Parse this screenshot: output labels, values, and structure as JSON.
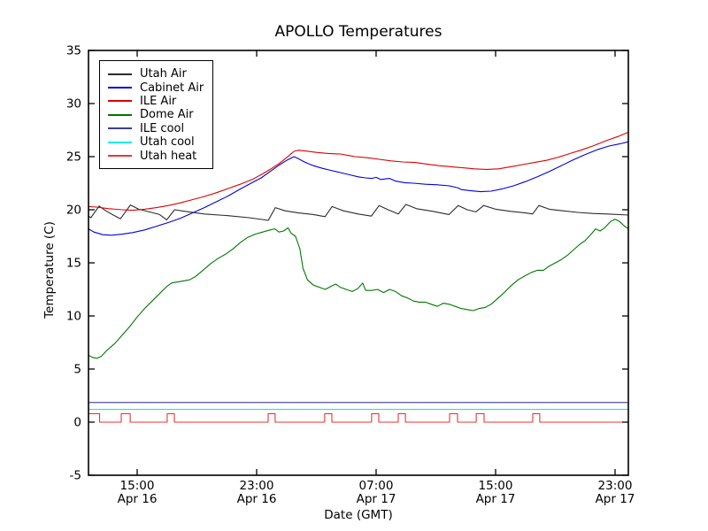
{
  "title": "APOLLO Temperatures",
  "xlabel": "Date (GMT)",
  "ylabel": "Temperature (C)",
  "colors": {
    "background": "#ffffff",
    "axis": "#000000",
    "utah_air": "#2b2b2b",
    "cabinet_air": "#0000dd",
    "ile_air": "#dd0000",
    "dome_air": "#007700",
    "ile_cool": "#3c3c8e",
    "utah_cool": "#00eeee",
    "utah_heat": "#ee3333"
  },
  "chart_data": {
    "type": "line",
    "title": "APOLLO Temperatures",
    "xlabel": "Date (GMT)",
    "ylabel": "Temperature (C)",
    "grid": false,
    "legend_position": "upper left",
    "x_unit": "hours since Apr 16 00:00 GMT",
    "x_range": [
      11.74,
      47.89
    ],
    "y_range": [
      -5,
      35
    ],
    "y_ticks": [
      -5,
      0,
      5,
      10,
      15,
      20,
      25,
      30,
      35
    ],
    "x_ticks": [
      {
        "value": 15,
        "line1": "15:00",
        "line2": "Apr 16"
      },
      {
        "value": 23,
        "line1": "23:00",
        "line2": "Apr 16"
      },
      {
        "value": 31,
        "line1": "07:00",
        "line2": "Apr 17"
      },
      {
        "value": 39,
        "line1": "15:00",
        "line2": "Apr 17"
      },
      {
        "value": 47,
        "line1": "23:00",
        "line2": "Apr 17"
      }
    ],
    "series": [
      {
        "name": "Utah Air",
        "color": "#2b2b2b",
        "points": [
          [
            11.74,
            19.4
          ],
          [
            11.9,
            19.25
          ],
          [
            12.45,
            20.35
          ],
          [
            12.9,
            19.9
          ],
          [
            13.4,
            19.5
          ],
          [
            13.88,
            19.15
          ],
          [
            14.55,
            20.45
          ],
          [
            15.1,
            20.05
          ],
          [
            15.8,
            19.8
          ],
          [
            16.5,
            19.55
          ],
          [
            16.98,
            19.05
          ],
          [
            17.5,
            20.0
          ],
          [
            18.2,
            19.85
          ],
          [
            19.5,
            19.6
          ],
          [
            21.0,
            19.45
          ],
          [
            22.5,
            19.25
          ],
          [
            23.78,
            19.0
          ],
          [
            24.25,
            20.2
          ],
          [
            24.9,
            19.9
          ],
          [
            25.8,
            19.7
          ],
          [
            26.8,
            19.55
          ],
          [
            27.58,
            19.35
          ],
          [
            28.05,
            20.3
          ],
          [
            28.8,
            19.9
          ],
          [
            29.8,
            19.6
          ],
          [
            30.68,
            19.4
          ],
          [
            31.2,
            20.4
          ],
          [
            31.8,
            20.0
          ],
          [
            32.48,
            19.6
          ],
          [
            33.0,
            20.5
          ],
          [
            33.7,
            20.1
          ],
          [
            34.8,
            19.85
          ],
          [
            35.88,
            19.55
          ],
          [
            36.5,
            20.4
          ],
          [
            37.1,
            20.0
          ],
          [
            37.68,
            19.8
          ],
          [
            38.2,
            20.4
          ],
          [
            39.0,
            20.05
          ],
          [
            40.0,
            19.85
          ],
          [
            41.0,
            19.7
          ],
          [
            41.48,
            19.6
          ],
          [
            41.9,
            20.4
          ],
          [
            42.6,
            20.05
          ],
          [
            43.5,
            19.9
          ],
          [
            44.5,
            19.75
          ],
          [
            45.5,
            19.65
          ],
          [
            46.5,
            19.6
          ],
          [
            47.89,
            19.5
          ]
        ]
      },
      {
        "name": "Cabinet Air",
        "color": "#0000dd",
        "points": [
          [
            11.74,
            18.2
          ],
          [
            12.1,
            17.9
          ],
          [
            12.7,
            17.65
          ],
          [
            13.3,
            17.6
          ],
          [
            14.0,
            17.7
          ],
          [
            14.7,
            17.85
          ],
          [
            15.5,
            18.1
          ],
          [
            16.3,
            18.45
          ],
          [
            17.1,
            18.8
          ],
          [
            17.9,
            19.2
          ],
          [
            18.7,
            19.7
          ],
          [
            19.5,
            20.2
          ],
          [
            20.3,
            20.75
          ],
          [
            21.1,
            21.3
          ],
          [
            21.9,
            21.95
          ],
          [
            22.7,
            22.55
          ],
          [
            23.3,
            23.0
          ],
          [
            23.9,
            23.6
          ],
          [
            24.5,
            24.2
          ],
          [
            25.0,
            24.65
          ],
          [
            25.5,
            25.0
          ],
          [
            25.8,
            24.8
          ],
          [
            26.2,
            24.5
          ],
          [
            26.8,
            24.15
          ],
          [
            27.4,
            23.9
          ],
          [
            28.0,
            23.7
          ],
          [
            28.6,
            23.5
          ],
          [
            29.2,
            23.3
          ],
          [
            29.8,
            23.1
          ],
          [
            30.3,
            23.0
          ],
          [
            30.7,
            22.95
          ],
          [
            31.0,
            23.05
          ],
          [
            31.3,
            22.85
          ],
          [
            31.9,
            22.95
          ],
          [
            32.3,
            22.7
          ],
          [
            32.9,
            22.55
          ],
          [
            33.5,
            22.5
          ],
          [
            34.3,
            22.4
          ],
          [
            35.1,
            22.35
          ],
          [
            35.9,
            22.25
          ],
          [
            36.5,
            22.05
          ],
          [
            36.7,
            21.9
          ],
          [
            37.3,
            21.8
          ],
          [
            38.0,
            21.7
          ],
          [
            38.7,
            21.75
          ],
          [
            39.4,
            21.95
          ],
          [
            40.2,
            22.25
          ],
          [
            41.0,
            22.65
          ],
          [
            41.8,
            23.1
          ],
          [
            42.6,
            23.6
          ],
          [
            43.4,
            24.15
          ],
          [
            44.2,
            24.7
          ],
          [
            45.0,
            25.2
          ],
          [
            45.8,
            25.65
          ],
          [
            46.6,
            26.0
          ],
          [
            47.3,
            26.2
          ],
          [
            47.89,
            26.4
          ]
        ]
      },
      {
        "name": "ILE Air",
        "color": "#dd0000",
        "points": [
          [
            11.74,
            20.3
          ],
          [
            12.3,
            20.25
          ],
          [
            13.1,
            20.1
          ],
          [
            14.0,
            20.0
          ],
          [
            14.7,
            19.95
          ],
          [
            15.5,
            20.05
          ],
          [
            16.3,
            20.2
          ],
          [
            17.1,
            20.4
          ],
          [
            17.9,
            20.65
          ],
          [
            18.7,
            20.95
          ],
          [
            19.5,
            21.25
          ],
          [
            20.3,
            21.6
          ],
          [
            21.1,
            22.0
          ],
          [
            21.9,
            22.4
          ],
          [
            22.7,
            22.85
          ],
          [
            23.3,
            23.3
          ],
          [
            23.9,
            23.8
          ],
          [
            24.5,
            24.35
          ],
          [
            25.0,
            24.9
          ],
          [
            25.5,
            25.5
          ],
          [
            25.8,
            25.6
          ],
          [
            26.2,
            25.55
          ],
          [
            27.0,
            25.4
          ],
          [
            27.8,
            25.3
          ],
          [
            28.6,
            25.25
          ],
          [
            29.2,
            25.1
          ],
          [
            29.6,
            25.0
          ],
          [
            30.4,
            24.9
          ],
          [
            31.2,
            24.75
          ],
          [
            32.0,
            24.6
          ],
          [
            32.8,
            24.5
          ],
          [
            33.6,
            24.45
          ],
          [
            34.4,
            24.3
          ],
          [
            35.2,
            24.15
          ],
          [
            36.0,
            24.05
          ],
          [
            36.8,
            23.95
          ],
          [
            37.6,
            23.85
          ],
          [
            38.4,
            23.8
          ],
          [
            39.2,
            23.85
          ],
          [
            40.0,
            24.05
          ],
          [
            40.8,
            24.25
          ],
          [
            41.6,
            24.45
          ],
          [
            42.4,
            24.65
          ],
          [
            43.2,
            24.95
          ],
          [
            44.0,
            25.3
          ],
          [
            44.8,
            25.65
          ],
          [
            45.6,
            26.05
          ],
          [
            46.4,
            26.5
          ],
          [
            47.2,
            26.9
          ],
          [
            47.89,
            27.3
          ]
        ]
      },
      {
        "name": "Dome Air",
        "color": "#007700",
        "points": [
          [
            11.74,
            6.3
          ],
          [
            12.0,
            6.1
          ],
          [
            12.3,
            6.0
          ],
          [
            12.6,
            6.2
          ],
          [
            13.0,
            6.8
          ],
          [
            13.5,
            7.4
          ],
          [
            14.0,
            8.2
          ],
          [
            14.5,
            9.0
          ],
          [
            15.0,
            9.9
          ],
          [
            15.5,
            10.7
          ],
          [
            16.0,
            11.4
          ],
          [
            16.5,
            12.1
          ],
          [
            17.0,
            12.8
          ],
          [
            17.3,
            13.1
          ],
          [
            17.7,
            13.2
          ],
          [
            18.1,
            13.3
          ],
          [
            18.5,
            13.4
          ],
          [
            18.9,
            13.7
          ],
          [
            19.4,
            14.3
          ],
          [
            19.9,
            14.9
          ],
          [
            20.4,
            15.4
          ],
          [
            20.9,
            15.8
          ],
          [
            21.4,
            16.3
          ],
          [
            21.9,
            16.9
          ],
          [
            22.4,
            17.4
          ],
          [
            22.9,
            17.7
          ],
          [
            23.4,
            17.9
          ],
          [
            23.9,
            18.1
          ],
          [
            24.2,
            18.2
          ],
          [
            24.5,
            17.9
          ],
          [
            24.8,
            18.0
          ],
          [
            25.1,
            18.3
          ],
          [
            25.3,
            17.8
          ],
          [
            25.6,
            17.5
          ],
          [
            25.9,
            16.3
          ],
          [
            26.1,
            14.5
          ],
          [
            26.4,
            13.4
          ],
          [
            26.8,
            12.9
          ],
          [
            27.2,
            12.7
          ],
          [
            27.6,
            12.5
          ],
          [
            28.0,
            12.8
          ],
          [
            28.3,
            13.0
          ],
          [
            28.6,
            12.7
          ],
          [
            29.0,
            12.5
          ],
          [
            29.4,
            12.3
          ],
          [
            29.8,
            12.6
          ],
          [
            30.1,
            13.1
          ],
          [
            30.3,
            12.4
          ],
          [
            30.7,
            12.4
          ],
          [
            31.1,
            12.5
          ],
          [
            31.5,
            12.2
          ],
          [
            31.9,
            12.5
          ],
          [
            32.3,
            12.3
          ],
          [
            32.7,
            11.9
          ],
          [
            33.1,
            11.7
          ],
          [
            33.5,
            11.4
          ],
          [
            33.9,
            11.3
          ],
          [
            34.3,
            11.3
          ],
          [
            34.7,
            11.1
          ],
          [
            35.1,
            10.9
          ],
          [
            35.5,
            11.2
          ],
          [
            35.9,
            11.1
          ],
          [
            36.3,
            10.9
          ],
          [
            36.7,
            10.7
          ],
          [
            37.1,
            10.6
          ],
          [
            37.5,
            10.5
          ],
          [
            37.9,
            10.7
          ],
          [
            38.3,
            10.8
          ],
          [
            38.7,
            11.1
          ],
          [
            39.1,
            11.6
          ],
          [
            39.5,
            12.1
          ],
          [
            40.0,
            12.8
          ],
          [
            40.5,
            13.4
          ],
          [
            41.0,
            13.8
          ],
          [
            41.4,
            14.1
          ],
          [
            41.8,
            14.3
          ],
          [
            42.2,
            14.3
          ],
          [
            42.6,
            14.7
          ],
          [
            43.0,
            15.0
          ],
          [
            43.4,
            15.3
          ],
          [
            43.8,
            15.7
          ],
          [
            44.2,
            16.2
          ],
          [
            44.6,
            16.7
          ],
          [
            45.0,
            17.1
          ],
          [
            45.4,
            17.7
          ],
          [
            45.7,
            18.2
          ],
          [
            46.0,
            18.0
          ],
          [
            46.3,
            18.3
          ],
          [
            46.7,
            18.9
          ],
          [
            47.0,
            19.1
          ],
          [
            47.3,
            18.9
          ],
          [
            47.6,
            18.5
          ],
          [
            47.89,
            18.2
          ]
        ]
      },
      {
        "name": "ILE cool",
        "color": "#3c3c8e",
        "points": [
          [
            11.74,
            1.85
          ],
          [
            47.89,
            1.85
          ]
        ]
      },
      {
        "name": "Utah cool",
        "color": "#00eeee",
        "points": [
          [
            11.74,
            1.2
          ],
          [
            47.89,
            1.2
          ]
        ]
      },
      {
        "name": "Utah heat",
        "color": "#ee3333",
        "points": [
          [
            11.74,
            0.8
          ],
          [
            12.48,
            0.8
          ],
          [
            12.48,
            0
          ],
          [
            13.93,
            0
          ],
          [
            13.93,
            0.8
          ],
          [
            14.53,
            0.8
          ],
          [
            14.53,
            0
          ],
          [
            17.01,
            0
          ],
          [
            17.01,
            0.8
          ],
          [
            17.49,
            0.8
          ],
          [
            17.49,
            0
          ],
          [
            23.77,
            0
          ],
          [
            23.77,
            0.8
          ],
          [
            24.24,
            0.8
          ],
          [
            24.24,
            0
          ],
          [
            27.56,
            0
          ],
          [
            27.56,
            0.8
          ],
          [
            28.04,
            0.8
          ],
          [
            28.04,
            0
          ],
          [
            30.7,
            0
          ],
          [
            30.7,
            0.8
          ],
          [
            31.18,
            0.8
          ],
          [
            31.18,
            0
          ],
          [
            32.48,
            0
          ],
          [
            32.48,
            0.8
          ],
          [
            32.96,
            0.8
          ],
          [
            32.96,
            0
          ],
          [
            35.92,
            0
          ],
          [
            35.92,
            0.8
          ],
          [
            36.45,
            0.8
          ],
          [
            36.45,
            0
          ],
          [
            37.7,
            0
          ],
          [
            37.7,
            0.8
          ],
          [
            38.23,
            0.8
          ],
          [
            38.23,
            0
          ],
          [
            41.49,
            0
          ],
          [
            41.49,
            0.8
          ],
          [
            41.96,
            0.8
          ],
          [
            41.96,
            0
          ],
          [
            47.89,
            0
          ]
        ]
      }
    ]
  }
}
